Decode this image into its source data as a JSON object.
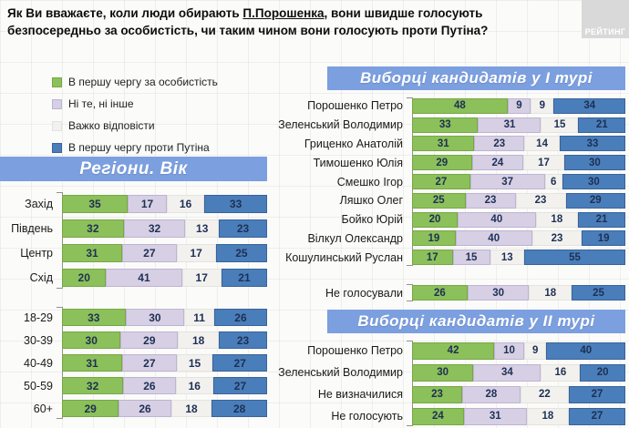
{
  "title": {
    "line1_before": "Як Ви вважаєте, коли люди обирають ",
    "line1_underlined": "П.Порошенка",
    "line1_after": ", вони швидше голосують",
    "line2": "безпосередньо за особистість, чи таким чином вони голосують проти Путіна?"
  },
  "logo_text": "РЕЙТИНГ",
  "headers": {
    "left": "Регіони. Вік",
    "round1": "Виборці кандидатів у І турі",
    "round2": "Виборці кандидатів у ІІ турі"
  },
  "chart_data": {
    "type": "bar",
    "orientation": "horizontal-stacked-100",
    "xlim": [
      0,
      100
    ],
    "grid": "faint background grid",
    "legend_position": "top-left, vertical",
    "series": [
      {
        "key": "za-osobystist",
        "name": "В першу чергу за особистість",
        "color": "#8cc05a",
        "border": "#76a843"
      },
      {
        "key": "ni-te-ni-inshe",
        "name": "Ні те, ні інше",
        "color": "#d7cfe4",
        "border": "#bfb3d4"
      },
      {
        "key": "vazhko-vidpovisty",
        "name": "Важко відповісти",
        "color": "#f2f1ee",
        "border": "#e4e3df"
      },
      {
        "key": "proty-putina",
        "name": "В першу чергу проти Путіна",
        "color": "#4a7eba",
        "border": "#38639b"
      }
    ],
    "groups": [
      {
        "id": "regions",
        "section": "Регіони. Вік",
        "rows": [
          {
            "label": "Захід",
            "values": [
              35,
              17,
              16,
              33
            ]
          },
          {
            "label": "Південь",
            "values": [
              32,
              32,
              13,
              23
            ]
          },
          {
            "label": "Центр",
            "values": [
              31,
              27,
              17,
              25
            ]
          },
          {
            "label": "Схід",
            "values": [
              20,
              41,
              17,
              21
            ]
          }
        ]
      },
      {
        "id": "ages",
        "section": "Регіони. Вік",
        "rows": [
          {
            "label": "18-29",
            "values": [
              33,
              30,
              11,
              26
            ]
          },
          {
            "label": "30-39",
            "values": [
              30,
              29,
              18,
              23
            ]
          },
          {
            "label": "40-49",
            "values": [
              31,
              27,
              15,
              27
            ]
          },
          {
            "label": "50-59",
            "values": [
              32,
              26,
              16,
              27
            ]
          },
          {
            "label": "60+",
            "values": [
              29,
              26,
              18,
              28
            ]
          }
        ]
      },
      {
        "id": "round1",
        "section": "Виборці кандидатів у І турі",
        "rows": [
          {
            "label": "Порошенко Петро",
            "values": [
              48,
              9,
              9,
              34
            ]
          },
          {
            "label": "Зеленський Володимир",
            "values": [
              33,
              31,
              15,
              21
            ]
          },
          {
            "label": "Гриценко Анатолій",
            "values": [
              31,
              23,
              14,
              33
            ]
          },
          {
            "label": "Тимошенко Юлія",
            "values": [
              29,
              24,
              17,
              30
            ]
          },
          {
            "label": "Смешко Ігор",
            "values": [
              27,
              37,
              6,
              30
            ]
          },
          {
            "label": "Ляшко Олег",
            "values": [
              25,
              23,
              23,
              29
            ]
          },
          {
            "label": "Бойко Юрій",
            "values": [
              20,
              40,
              18,
              21
            ]
          },
          {
            "label": "Вілкул Олександр",
            "values": [
              19,
              40,
              23,
              19
            ]
          },
          {
            "label": "Кошулинський Руслан",
            "values": [
              17,
              15,
              13,
              55
            ]
          }
        ]
      },
      {
        "id": "nonvoters1",
        "section": "Виборці кандидатів у І турі",
        "rows": [
          {
            "label": "Не голосували",
            "values": [
              26,
              30,
              18,
              25
            ]
          }
        ]
      },
      {
        "id": "round2",
        "section": "Виборці кандидатів у ІІ турі",
        "rows": [
          {
            "label": "Порошенко Петро",
            "values": [
              42,
              10,
              9,
              40
            ]
          },
          {
            "label": "Зеленський Володимир",
            "values": [
              30,
              34,
              16,
              20
            ]
          },
          {
            "label": "Не визначилися",
            "values": [
              23,
              28,
              22,
              27
            ]
          },
          {
            "label": "Не голосують",
            "values": [
              24,
              31,
              18,
              27
            ]
          }
        ]
      }
    ]
  }
}
